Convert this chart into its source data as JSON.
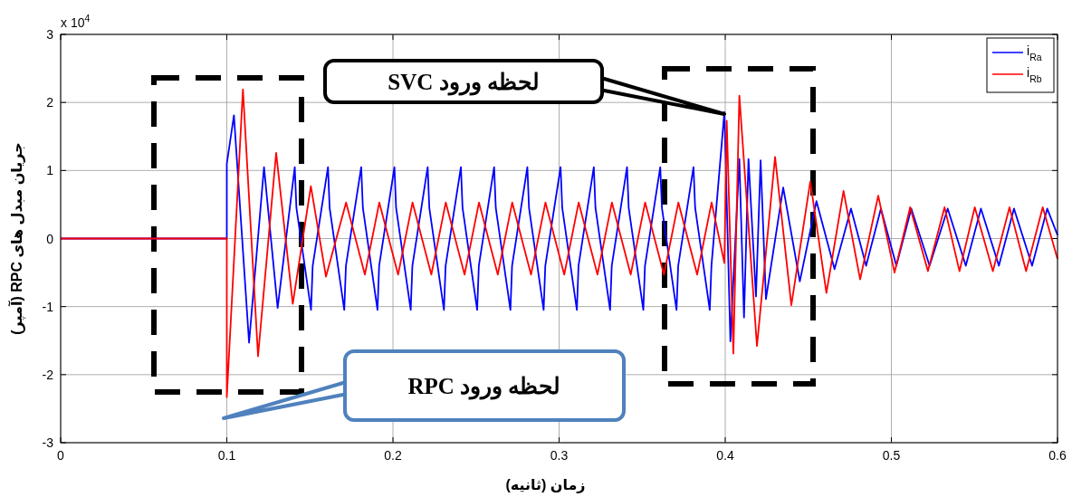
{
  "chart_data": {
    "type": "line",
    "xlabel": "زمان (ثانیه)",
    "ylabel": "جریان مبدل های RPC (آمپر)",
    "xlim": [
      0,
      0.6
    ],
    "ylim": [
      -3,
      3
    ],
    "xticks": [
      0,
      0.1,
      0.2,
      0.3,
      0.4,
      0.5,
      0.6
    ],
    "yticks": [
      -3,
      -2,
      -1,
      0,
      1,
      2,
      3
    ],
    "grid": true,
    "legend": "top right",
    "annotations": [
      "x 10$^{4}$",
      "لحظه ورود SVC",
      "لحظه ورود RPC"
    ],
    "series": [
      {
        "name": "i$_{Ra}$",
        "color": "#0000ff",
        "x": [
          0,
          0.1,
          0.1,
          0.1043,
          0.1134,
          0.1224,
          0.1306,
          0.1409,
          0.1419,
          0.1507,
          0.1517,
          0.1609,
          0.1619,
          0.1707,
          0.1717,
          0.1809,
          0.1819,
          0.1907,
          0.1917,
          0.2009,
          0.2019,
          0.2107,
          0.2117,
          0.2209,
          0.2219,
          0.2307,
          0.2317,
          0.2409,
          0.2419,
          0.2507,
          0.2517,
          0.2609,
          0.2619,
          0.2707,
          0.2717,
          0.2809,
          0.2819,
          0.2907,
          0.2917,
          0.3009,
          0.3019,
          0.3107,
          0.3117,
          0.3209,
          0.3219,
          0.3307,
          0.3317,
          0.3409,
          0.3419,
          0.3507,
          0.3517,
          0.3609,
          0.3619,
          0.3707,
          0.3717,
          0.3809,
          0.3819,
          0.3907,
          0.3917,
          0.3995,
          0.4031,
          0.4085,
          0.4113,
          0.414,
          0.4185,
          0.4213,
          0.4245,
          0.4349,
          0.4449,
          0.4549,
          0.4658,
          0.4757,
          0.4848,
          0.4937,
          0.503,
          0.512,
          0.523,
          0.5339,
          0.5448,
          0.5539,
          0.5647,
          0.5738,
          0.5847,
          0.5938,
          0.6
        ],
        "values": [
          0,
          0,
          1.1,
          1.81,
          -1.53,
          1.05,
          -1.02,
          1.05,
          0.45,
          -1.05,
          -0.4,
          1.05,
          0.45,
          -1.05,
          -0.4,
          1.05,
          0.45,
          -1.05,
          -0.4,
          1.05,
          0.45,
          -1.05,
          -0.4,
          1.05,
          0.45,
          -1.05,
          -0.4,
          1.05,
          0.45,
          -1.05,
          -0.4,
          1.05,
          0.45,
          -1.05,
          -0.4,
          1.05,
          0.45,
          -1.05,
          -0.4,
          1.05,
          0.45,
          -1.05,
          -0.4,
          1.05,
          0.45,
          -1.05,
          -0.4,
          1.05,
          0.45,
          -1.05,
          -0.4,
          1.05,
          0.45,
          -1.05,
          -0.4,
          1.05,
          0.45,
          -1.05,
          -0.4,
          1.86,
          -1.51,
          1.17,
          -1.16,
          1.17,
          -0.85,
          1.15,
          -0.89,
          0.75,
          -0.63,
          0.55,
          -0.45,
          0.44,
          -0.4,
          0.44,
          -0.4,
          0.44,
          -0.4,
          0.44,
          -0.4,
          0.44,
          -0.4,
          0.44,
          -0.4,
          0.44,
          0.05
        ]
      },
      {
        "name": "i$_{Rb}$",
        "color": "#ff0000",
        "x": [
          0,
          0.1,
          0.1,
          0.1097,
          0.1188,
          0.1297,
          0.1397,
          0.1506,
          0.1597,
          0.1718,
          0.1831,
          0.1918,
          0.2031,
          0.2118,
          0.2231,
          0.2318,
          0.2431,
          0.2518,
          0.2631,
          0.2718,
          0.2831,
          0.2918,
          0.3031,
          0.3118,
          0.3231,
          0.3318,
          0.3431,
          0.3518,
          0.3631,
          0.3718,
          0.3831,
          0.3918,
          0.3995,
          0.4009,
          0.4049,
          0.4085,
          0.4191,
          0.43,
          0.4398,
          0.4512,
          0.4609,
          0.4712,
          0.4812,
          0.4921,
          0.5019,
          0.5113,
          0.522,
          0.532,
          0.541,
          0.5502,
          0.5611,
          0.5711,
          0.5811,
          0.5911,
          0.6
        ],
        "values": [
          0,
          0,
          -2.33,
          2.19,
          -1.73,
          1.26,
          -0.96,
          0.77,
          -0.56,
          0.53,
          -0.53,
          0.53,
          -0.53,
          0.53,
          -0.53,
          0.53,
          -0.53,
          0.53,
          -0.53,
          0.53,
          -0.53,
          0.53,
          -0.53,
          0.53,
          -0.53,
          0.53,
          -0.53,
          0.53,
          -0.53,
          0.53,
          -0.53,
          0.53,
          -0.36,
          1.73,
          -1.69,
          2.1,
          -1.58,
          1.2,
          -0.98,
          0.84,
          -0.8,
          0.7,
          -0.6,
          0.63,
          -0.5,
          0.46,
          -0.48,
          0.46,
          -0.48,
          0.46,
          -0.48,
          0.46,
          -0.48,
          0.46,
          -0.3
        ]
      }
    ]
  }
}
